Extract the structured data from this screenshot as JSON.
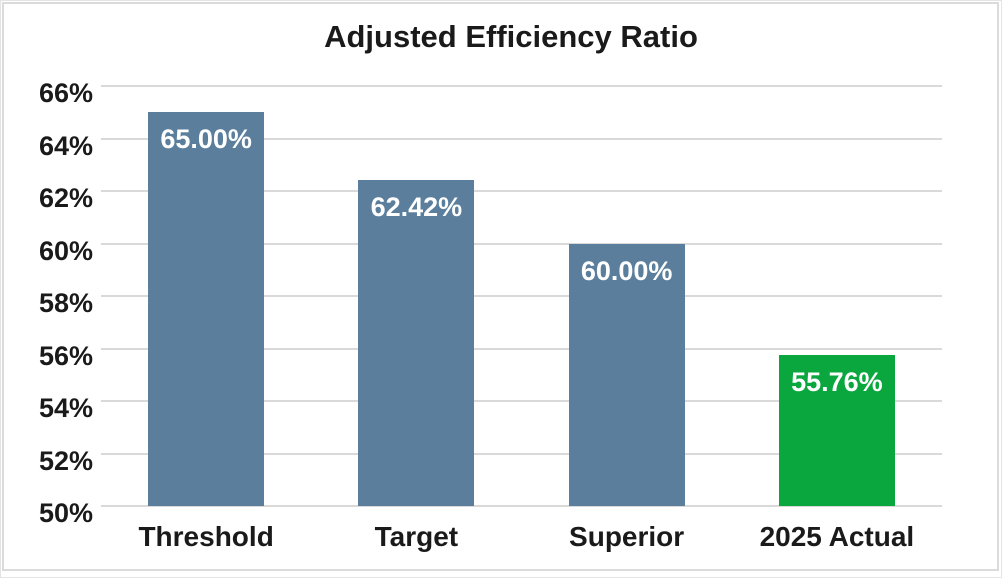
{
  "chart": {
    "background": "#FFFFFF",
    "frame_color": "#DBDBDB"
  },
  "chart_data": {
    "type": "bar",
    "title": "Adjusted Efficiency Ratio",
    "categories": [
      "Threshold",
      "Target",
      "Superior",
      "2025 Actual"
    ],
    "values": [
      65.0,
      62.42,
      60.0,
      55.76
    ],
    "value_labels": [
      "65.00%",
      "62.42%",
      "60.00%",
      "55.76%"
    ],
    "bar_colors": [
      "#5A7E9B",
      "#5A7E9B",
      "#5A7E9B",
      "#0AA63E"
    ],
    "xlabel": "",
    "ylabel": "",
    "ylim": [
      50,
      66
    ],
    "ytick_step": 2,
    "ytick_labels": [
      "50%",
      "52%",
      "54%",
      "56%",
      "58%",
      "60%",
      "62%",
      "64%",
      "66%"
    ],
    "grid": true,
    "gridline_color": "#D9D9D9",
    "axis_text_color": "#1A1A1A",
    "value_text_color": "#FFFFFF",
    "legend": false
  }
}
